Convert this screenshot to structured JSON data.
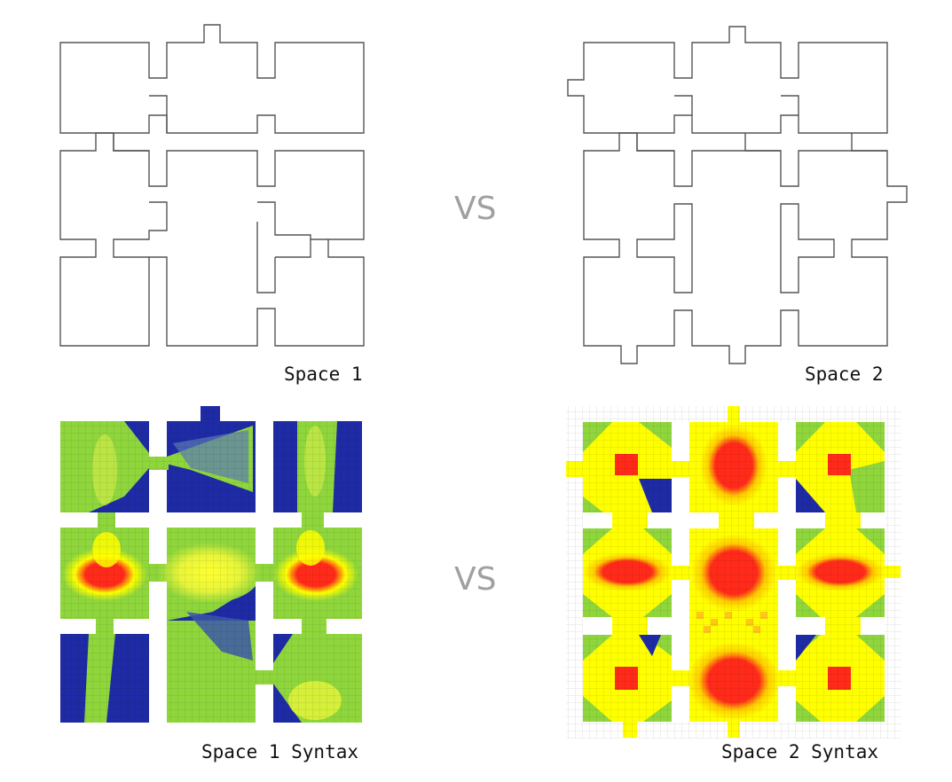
{
  "labels": {
    "vs_top": "VS",
    "vs_bottom": "VS",
    "space1": "Space 1",
    "space2": "Space 2",
    "space1_syntax": "Space 1 Syntax",
    "space2_syntax": "Space 2 Syntax"
  },
  "colors": {
    "outline": "#555555",
    "vs": "#a0a0a0",
    "syntax_low": "#1e2ba5",
    "syntax_mid_low": "#8fd63c",
    "syntax_mid": "#ffff00",
    "syntax_high": "#ff2a1a",
    "grid": "#000000"
  }
}
